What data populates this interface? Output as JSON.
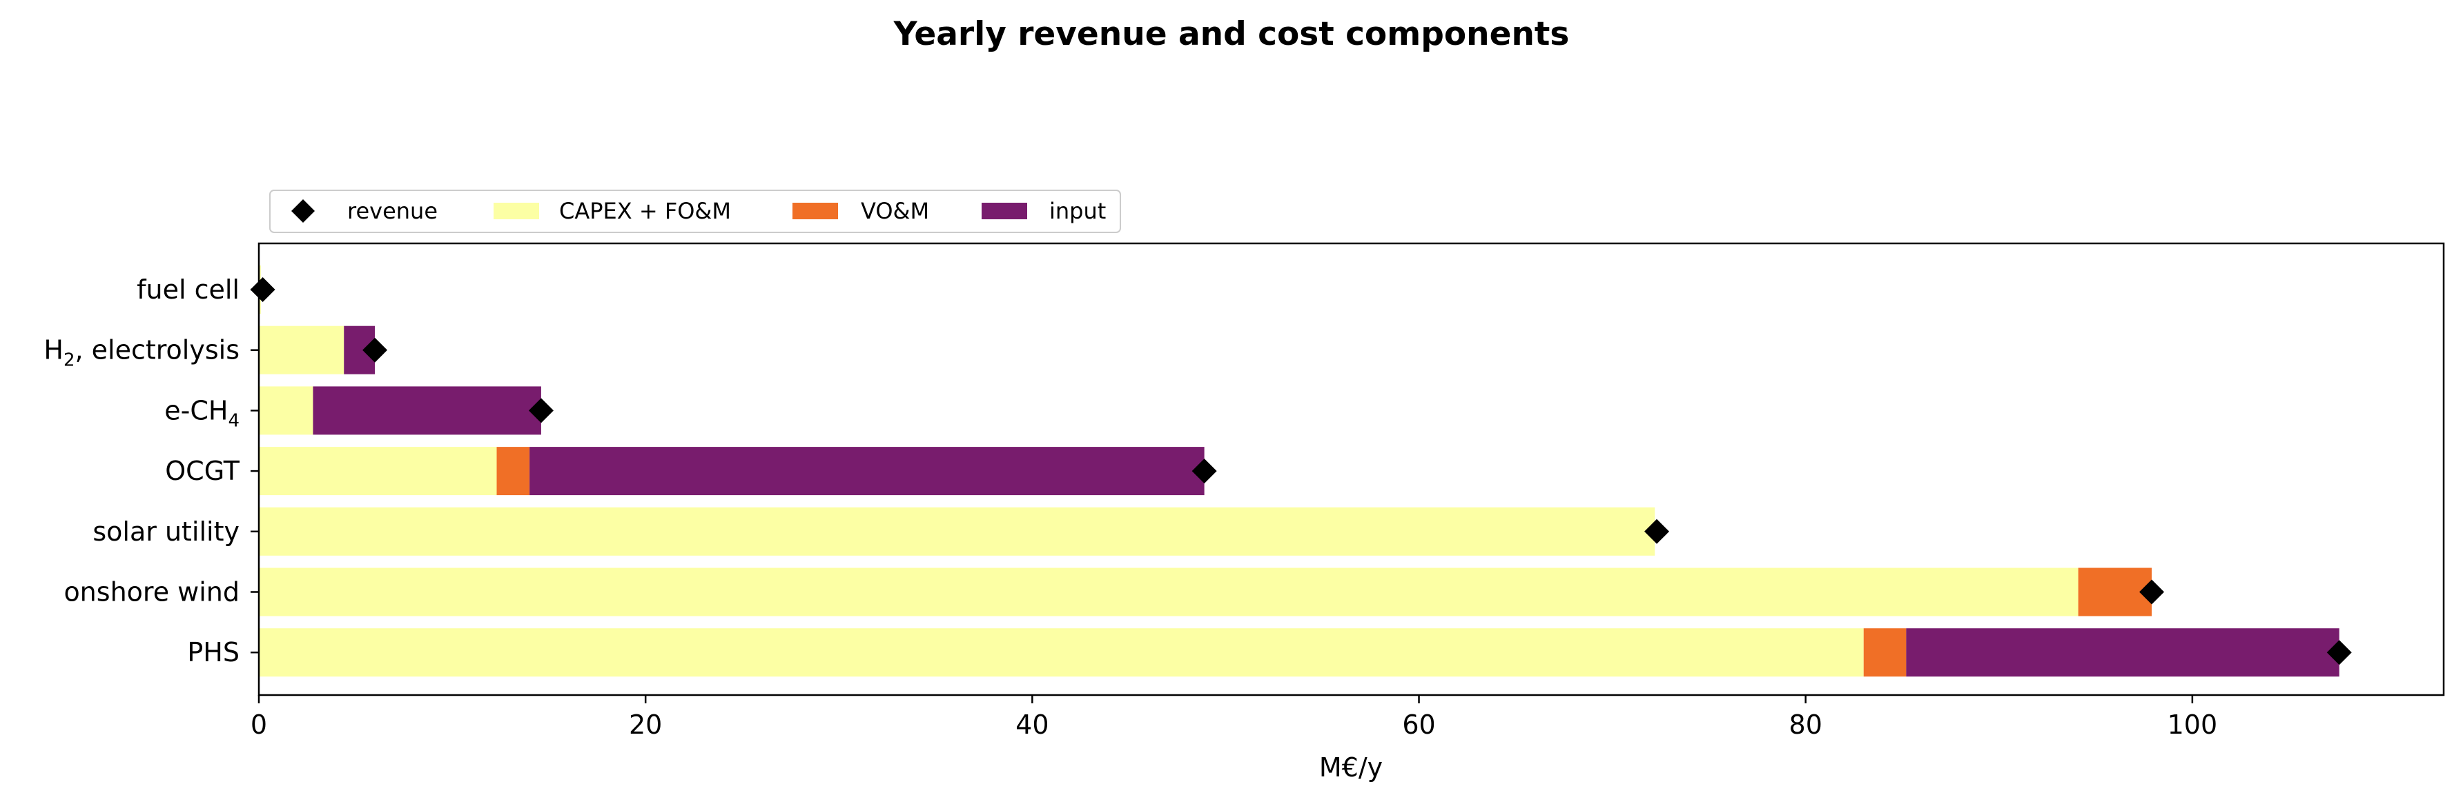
{
  "chart_data": {
    "type": "bar",
    "orientation": "horizontal",
    "stacked": true,
    "title": "Yearly revenue and cost components",
    "xlabel": "M€/y",
    "ylabel": "",
    "xlim": [
      0,
      113
    ],
    "xticks": [
      0,
      20,
      40,
      60,
      80,
      100
    ],
    "xtick_labels": [
      "0",
      "20",
      "40",
      "60",
      "80",
      "100"
    ],
    "categories": [
      {
        "label": "fuel cell",
        "sub": ""
      },
      {
        "label": "H",
        "sub": "2",
        "suffix": ", electrolysis"
      },
      {
        "label": "e-CH",
        "sub": "4"
      },
      {
        "label": "OCGT",
        "sub": ""
      },
      {
        "label": "solar utility",
        "sub": ""
      },
      {
        "label": "onshore wind",
        "sub": ""
      },
      {
        "label": "PHS",
        "sub": ""
      }
    ],
    "series": [
      {
        "name": "CAPEX + FO&M",
        "color": "#fcffa4",
        "values": [
          0.1,
          4.4,
          2.8,
          12.3,
          72.2,
          94.1,
          83.0
        ]
      },
      {
        "name": "VO&M",
        "color": "#f06f26",
        "values": [
          0.0,
          0.0,
          0.0,
          1.7,
          0.0,
          3.8,
          2.2
        ]
      },
      {
        "name": "input",
        "color": "#781c6d",
        "values": [
          0.0,
          1.6,
          11.8,
          34.9,
          0.0,
          0.0,
          22.4
        ]
      }
    ],
    "revenue": {
      "name": "revenue",
      "color": "#000000",
      "values": [
        0.2,
        6.0,
        14.6,
        48.9,
        72.3,
        97.9,
        107.6
      ]
    },
    "legend": {
      "position": "top-left",
      "entries": [
        "revenue",
        "CAPEX + FO&M",
        "VO&M",
        "input"
      ]
    },
    "grid": false
  }
}
